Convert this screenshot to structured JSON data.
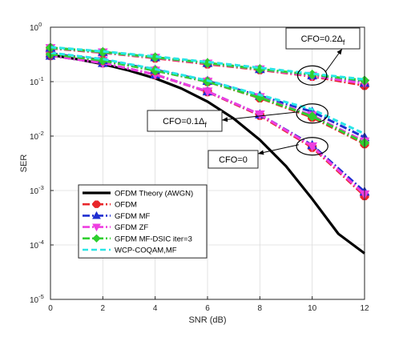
{
  "chart_data": {
    "type": "line",
    "title": "",
    "xlabel": "SNR (dB)",
    "ylabel": "SER",
    "xlim": [
      0,
      12
    ],
    "ylim_log10": [
      -5,
      0
    ],
    "y_scale": "log",
    "grid": true,
    "x_ticks": [
      "0",
      "2",
      "4",
      "6",
      "8",
      "10",
      "12"
    ],
    "y_ticks": [
      {
        "base": "10",
        "exp": "0",
        "value": 1
      },
      {
        "base": "10",
        "exp": "-1",
        "value": 0.1
      },
      {
        "base": "10",
        "exp": "-2",
        "value": 0.01
      },
      {
        "base": "10",
        "exp": "-3",
        "value": 0.001
      },
      {
        "base": "10",
        "exp": "-4",
        "value": 0.0001
      },
      {
        "base": "10",
        "exp": "-5",
        "value": 1e-05
      }
    ],
    "x": [
      0,
      2,
      4,
      6,
      8,
      10,
      12
    ],
    "legend_position": "lower-left",
    "series": [
      {
        "name": "OFDM Theory (AWGN)",
        "color": "#000000",
        "dash": "solid",
        "marker": "none",
        "width": 3.2,
        "x": [
          0,
          1,
          2,
          3,
          4,
          5,
          6,
          7,
          8,
          9,
          10,
          11,
          12
        ],
        "values": [
          0.31,
          0.26,
          0.21,
          0.16,
          0.115,
          0.075,
          0.043,
          0.021,
          0.0085,
          0.0028,
          0.0007,
          0.00016,
          7e-05
        ]
      },
      {
        "name": "OFDM",
        "group": "CFO=0",
        "color": "#e8262b",
        "dash": "dashdot",
        "marker": "octagon",
        "width": 3,
        "values": [
          0.3,
          0.22,
          0.135,
          0.065,
          0.024,
          0.0062,
          0.0008
        ]
      },
      {
        "name": "GFDM MF",
        "group": "CFO=0",
        "color": "#1f2fd1",
        "dash": "dashdot",
        "marker": "triangle-up",
        "width": 3,
        "values": [
          0.3,
          0.22,
          0.135,
          0.066,
          0.025,
          0.0068,
          0.00095
        ]
      },
      {
        "name": "GFDM ZF",
        "group": "CFO=0",
        "color": "#ee3ee0",
        "dash": "dashdot",
        "marker": "triangle-down",
        "width": 3,
        "values": [
          0.3,
          0.22,
          0.135,
          0.066,
          0.025,
          0.0065,
          0.00085
        ]
      },
      {
        "name": "OFDM",
        "group": "CFO=0.1",
        "color": "#e8262b",
        "dash": "dashdot",
        "marker": "octagon",
        "width": 3,
        "values": [
          0.32,
          0.245,
          0.16,
          0.1,
          0.05,
          0.022,
          0.0072
        ]
      },
      {
        "name": "GFDM MF",
        "group": "CFO=0.1",
        "color": "#1f2fd1",
        "dash": "dashdot",
        "marker": "triangle-up",
        "width": 3,
        "values": [
          0.33,
          0.25,
          0.165,
          0.103,
          0.055,
          0.028,
          0.0095
        ]
      },
      {
        "name": "GFDM ZF",
        "group": "CFO=0.1",
        "color": "#ee3ee0",
        "dash": "dashdot",
        "marker": "triangle-down",
        "width": 3,
        "values": [
          0.32,
          0.245,
          0.16,
          0.1,
          0.052,
          0.024,
          0.008
        ]
      },
      {
        "name": "GFDM MF-DSIC iter=3",
        "group": "CFO=0.1",
        "color": "#2fcf2f",
        "dash": "dashdot",
        "marker": "diamond",
        "width": 3,
        "values": [
          0.32,
          0.245,
          0.16,
          0.1,
          0.051,
          0.023,
          0.0075
        ]
      },
      {
        "name": "WCP-COQAM,MF",
        "group": "CFO=0.1",
        "color": "#29e6e6",
        "dash": "dashed",
        "marker": "none",
        "width": 3,
        "values": [
          0.34,
          0.26,
          0.17,
          0.105,
          0.057,
          0.031,
          0.011
        ]
      },
      {
        "name": "OFDM",
        "group": "CFO=0.2",
        "color": "#e8262b",
        "dash": "dashdot",
        "marker": "octagon",
        "width": 3,
        "values": [
          0.41,
          0.34,
          0.27,
          0.21,
          0.165,
          0.125,
          0.085
        ]
      },
      {
        "name": "GFDM MF",
        "group": "CFO=0.2",
        "color": "#1f2fd1",
        "dash": "dashdot",
        "marker": "triangle-up",
        "width": 3,
        "values": [
          0.42,
          0.35,
          0.28,
          0.22,
          0.17,
          0.13,
          0.095
        ]
      },
      {
        "name": "GFDM ZF",
        "group": "CFO=0.2",
        "color": "#ee3ee0",
        "dash": "dashdot",
        "marker": "triangle-down",
        "width": 3,
        "values": [
          0.415,
          0.345,
          0.275,
          0.215,
          0.168,
          0.128,
          0.092
        ]
      },
      {
        "name": "GFDM MF-DSIC iter=3",
        "group": "CFO=0.2",
        "color": "#2fcf2f",
        "dash": "dashdot",
        "marker": "diamond",
        "width": 3,
        "values": [
          0.42,
          0.35,
          0.28,
          0.22,
          0.17,
          0.135,
          0.105
        ]
      },
      {
        "name": "WCP-COQAM,MF",
        "group": "CFO=0.2",
        "color": "#29e6e6",
        "dash": "dashed",
        "marker": "none",
        "width": 3,
        "values": [
          0.43,
          0.36,
          0.29,
          0.23,
          0.18,
          0.14,
          0.11
        ]
      }
    ],
    "legend": [
      {
        "label": "OFDM Theory (AWGN)",
        "color": "#000000",
        "dash": "solid",
        "marker": "none"
      },
      {
        "label": "OFDM",
        "color": "#e8262b",
        "dash": "dashdot",
        "marker": "octagon"
      },
      {
        "label": "GFDM MF",
        "color": "#1f2fd1",
        "dash": "dashdot",
        "marker": "triangle-up"
      },
      {
        "label": "GFDM ZF",
        "color": "#ee3ee0",
        "dash": "dashdot",
        "marker": "triangle-down"
      },
      {
        "label": "GFDM MF-DSIC iter=3",
        "color": "#2fcf2f",
        "dash": "dashdot",
        "marker": "diamond"
      },
      {
        "label": "WCP-COQAM,MF",
        "color": "#29e6e6",
        "dash": "dashed",
        "marker": "none"
      }
    ],
    "annotations": [
      {
        "main": "CFO=0.2",
        "delta": "Δ",
        "sub": "f",
        "points_to": {
          "x": 10,
          "y": 0.13
        }
      },
      {
        "main": "CFO=0.1",
        "delta": "Δ",
        "sub": "f",
        "points_to": {
          "x": 10,
          "y": 0.026
        }
      },
      {
        "main": "CFO=0",
        "delta": "",
        "sub": "",
        "points_to": {
          "x": 10,
          "y": 0.0065
        }
      }
    ]
  }
}
